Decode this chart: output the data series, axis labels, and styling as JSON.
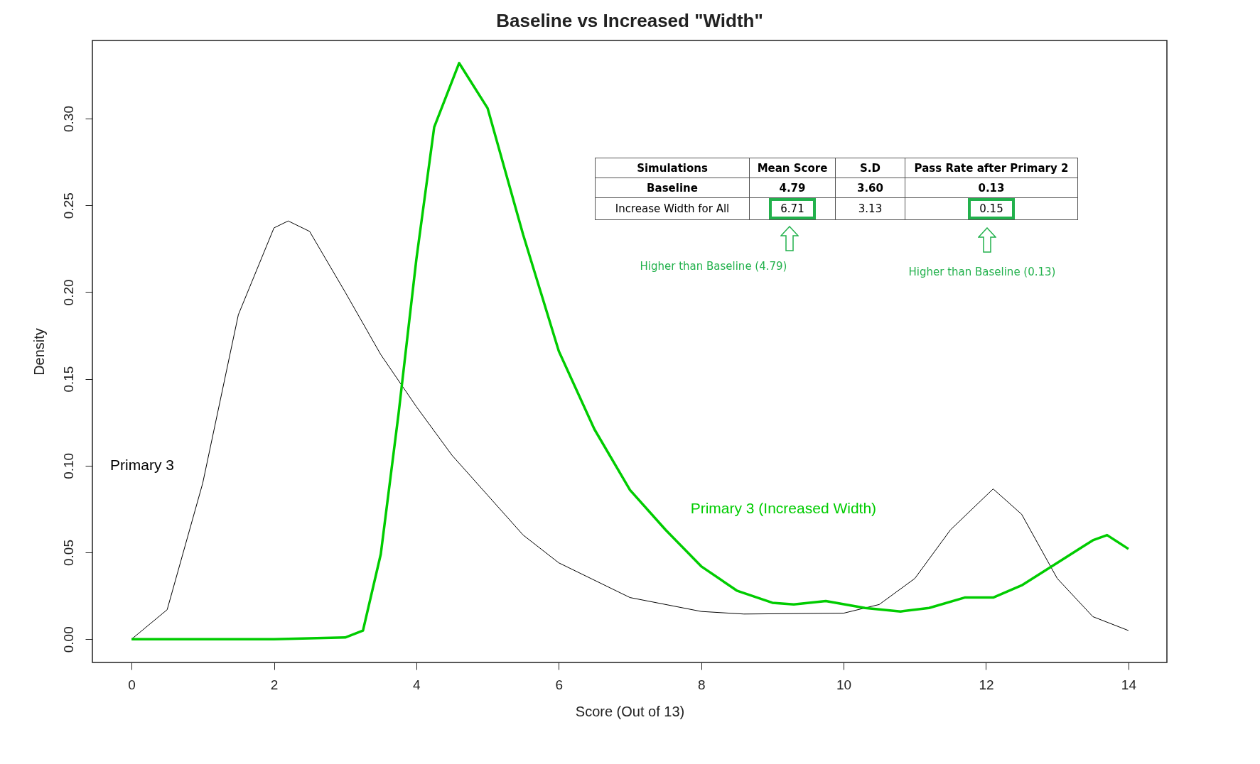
{
  "chart_data": {
    "type": "line",
    "title": "Baseline vs Increased \"Width\"",
    "xlabel": "Score (Out of 13)",
    "ylabel": "Density",
    "xlim": [
      -0.55,
      14.54
    ],
    "ylim": [
      -0.0134,
      0.345
    ],
    "xticks": [
      0,
      2,
      4,
      6,
      8,
      10,
      12,
      14
    ],
    "yticks": [
      {
        "value": 0,
        "label": "0.00"
      },
      {
        "value": 0.05,
        "label": "0.05"
      },
      {
        "value": 0.1,
        "label": "0.10"
      },
      {
        "value": 0.15,
        "label": "0.15"
      },
      {
        "value": 0.2,
        "label": "0.20"
      },
      {
        "value": 0.25,
        "label": "0.25"
      },
      {
        "value": 0.3,
        "label": "0.30"
      }
    ],
    "grid": false,
    "legend": false,
    "marker": "none",
    "line_style": "solid",
    "series": [
      {
        "name": "Primary 3",
        "color": "#000000",
        "x": [
          0,
          0.5,
          1,
          1.5,
          2,
          2.2,
          2.5,
          3,
          3.5,
          4,
          4.5,
          5,
          5.5,
          6,
          7,
          8,
          8.6,
          10,
          10.5,
          11,
          11.5,
          12.1,
          12.5,
          13,
          13.5,
          14
        ],
        "values": [
          0,
          0.017,
          0.09,
          0.187,
          0.237,
          0.241,
          0.235,
          0.2,
          0.164,
          0.134,
          0.106,
          0.083,
          0.06,
          0.044,
          0.024,
          0.016,
          0.0145,
          0.015,
          0.02,
          0.035,
          0.063,
          0.0866,
          0.072,
          0.035,
          0.013,
          0.005
        ]
      },
      {
        "name": "Primary 3 (Increased Width)",
        "color": "#00cc00",
        "x": [
          0,
          1,
          2,
          3,
          3.25,
          3.5,
          3.75,
          4,
          4.25,
          4.6,
          5,
          5.5,
          6,
          6.5,
          7,
          7.5,
          8,
          8.5,
          9,
          9.3,
          9.75,
          10.3,
          10.8,
          11.2,
          11.7,
          12.1,
          12.5,
          13,
          13.5,
          13.7,
          14
        ],
        "values": [
          0,
          0,
          0,
          0.001,
          0.005,
          0.049,
          0.13,
          0.219,
          0.295,
          0.332,
          0.306,
          0.233,
          0.166,
          0.121,
          0.086,
          0.063,
          0.042,
          0.028,
          0.021,
          0.02,
          0.022,
          0.018,
          0.016,
          0.018,
          0.024,
          0.024,
          0.031,
          0.044,
          0.057,
          0.06,
          0.052
        ]
      }
    ],
    "annotations": [
      "Simulations",
      "Mean Score",
      "S.D",
      "Pass Rate after Primary 2",
      "Baseline",
      "4.79",
      "3.60",
      "0.13",
      "Increase Width for All",
      "6.71",
      "3.13",
      "0.15",
      "Higher than Baseline (4.79)",
      "Higher than Baseline (0.13)"
    ]
  }
}
